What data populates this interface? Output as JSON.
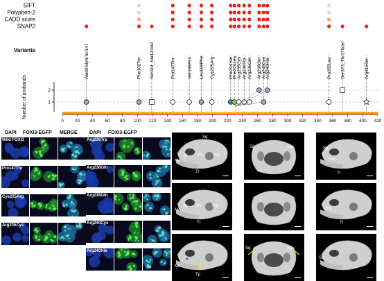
{
  "predictors": [
    "SIFT",
    "Polyphen-2",
    "CADD score",
    "SNAP2"
  ],
  "variants_label": "Variants",
  "y_axis_label": "Number of probands",
  "colors": {
    "red": "#e8231a",
    "orange": "#f2a46a",
    "grey": "#d9d9d9",
    "purple": "#b89ad8",
    "green": "#8ed04a",
    "blue": "#4a88d0"
  },
  "variants": [
    {
      "name": "Ala32GlyfsTer147",
      "pos": 32,
      "count": 1,
      "marker": "circle",
      "fill": "#b89ad8",
      "pred": [
        "none",
        "none",
        "none",
        "red"
      ]
    },
    {
      "name": "Phe102Tyr",
      "pos": 102,
      "count": 1,
      "marker": "circle",
      "fill": "#b89ad8",
      "pred": [
        "grey",
        "grey",
        "orange",
        "red"
      ]
    },
    {
      "name": "Ser119_Ala124del",
      "pos": 119,
      "count": 1,
      "marker": "square",
      "fill": "#ffffff",
      "pred": [
        "none",
        "none",
        "none",
        "red"
      ]
    },
    {
      "name": "Pro147Thr",
      "pos": 147,
      "count": 1,
      "marker": "circle",
      "fill": "#ffffff",
      "pred": [
        "red",
        "red",
        "red",
        "red"
      ]
    },
    {
      "name": "Ser169Asn",
      "pos": 169,
      "count": 1,
      "marker": "circle",
      "fill": "#ffffff",
      "pred": [
        "red",
        "red",
        "red",
        "red"
      ]
    },
    {
      "name": "Leu199Phe",
      "pos": 185,
      "count": 1,
      "marker": "circle",
      "fill": "#b89ad8",
      "pred": [
        "red",
        "red",
        "red",
        "red"
      ]
    },
    {
      "name": "Cys225Arg",
      "pos": 199,
      "count": 1,
      "marker": "circle",
      "fill": "#ffffff",
      "pred": [
        "red",
        "red",
        "red",
        "red"
      ]
    },
    {
      "name": "Phe224Val",
      "pos": 224,
      "count": 1,
      "marker": "circle",
      "fill": "#4a88d0",
      "pred": [
        "red",
        "red",
        "red",
        "red"
      ]
    },
    {
      "name": "Phe224Leu",
      "pos": 229,
      "count": 1,
      "marker": "circle",
      "fill": "#8ed04a",
      "pred": [
        "red",
        "red",
        "red",
        "red"
      ]
    },
    {
      "name": "Arg235Cys",
      "pos": 235,
      "count": 1,
      "marker": "circle",
      "fill": "#ffffff",
      "pred": [
        "red",
        "red",
        "red",
        "red"
      ]
    },
    {
      "name": "Arg236Trp",
      "pos": 242,
      "count": 1,
      "marker": "circle",
      "fill": "#ffffff",
      "pred": [
        "red",
        "red",
        "red",
        "red"
      ]
    },
    {
      "name": "Arg236Gln",
      "pos": 249,
      "count": 1,
      "marker": "circle",
      "fill": "#ffffff",
      "pred": [
        "red",
        "red",
        "red",
        "red"
      ]
    },
    {
      "name": "Arg238Gln",
      "pos": 262,
      "count": 2,
      "marker": "circle",
      "fill": "#b89ad8",
      "pred": [
        "red",
        "red",
        "red",
        "red"
      ]
    },
    {
      "name": "Arg240Cys",
      "pos": 268,
      "count": 1,
      "marker": "circle",
      "fill": "#b89ad8",
      "pred": [
        "red",
        "red",
        "red",
        "red"
      ]
    },
    {
      "name": "Arg240His",
      "pos": 273,
      "count": 2,
      "marker": "circle",
      "fill": "#b89ad8",
      "pred": [
        "red",
        "red",
        "red",
        "red"
      ]
    },
    {
      "name": "Pro355Leu",
      "pos": 355,
      "count": 1,
      "marker": "circle",
      "fill": "#ffffff",
      "pred": [
        "grey",
        "grey",
        "orange",
        "red"
      ]
    },
    {
      "name": "Ser373_Thr376del",
      "pos": 373,
      "count": 2,
      "marker": "square",
      "fill": "#ffffff",
      "pred": [
        "none",
        "none",
        "none",
        "red"
      ]
    },
    {
      "name": "Arg415Ter",
      "pos": 405,
      "count": 1,
      "marker": "star",
      "fill": "#ffffff",
      "pred": [
        "none",
        "none",
        "none",
        "red"
      ]
    }
  ],
  "axis": {
    "ticks": [
      0,
      20,
      40,
      60,
      80,
      100,
      120,
      140,
      160,
      180,
      200,
      220,
      240,
      260,
      280,
      300,
      320,
      340,
      360,
      380,
      400,
      420
    ],
    "y_ticks": [
      1,
      2
    ]
  },
  "micro_headers": {
    "dapi": "DAPI",
    "foxi3": "FOXI3-EGFP",
    "merge": "MERGE"
  },
  "micro_left": [
    "Wild FOXI3",
    "Pro147Thr",
    "Cys225Arg",
    "Arg235Cys"
  ],
  "micro_right": [
    "Arg236Trp",
    "Arg236Gln",
    "Arg238Gln",
    "Arg240Cys",
    "Arg240His"
  ],
  "ct_labels": {
    "sq": "Sq",
    "md": "Md",
    "jg": "Jg",
    "pe": "Pe",
    "rtp": "Rtp",
    "tr": "Tr",
    "tp": "Tp",
    "ab": "ab",
    "mg": "Mg"
  }
}
